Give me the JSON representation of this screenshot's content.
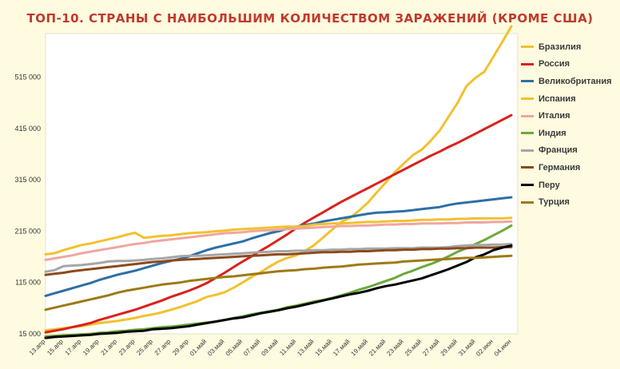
{
  "chart_data": {
    "type": "line",
    "title": "ТОП-10. СТРАНЫ С НАИБОЛЬШИМ КОЛИЧЕСТВОМ ЗАРАЖЕНИЙ (КРОМЕ США)",
    "xlabel": "",
    "ylabel": "",
    "ylim": [
      15000,
      600000
    ],
    "yticks": [
      15000,
      115000,
      215000,
      315000,
      415000,
      515000
    ],
    "ytick_labels": [
      "15 000",
      "115 000",
      "215 000",
      "315 000",
      "415 000",
      "515 000"
    ],
    "x_tick_labels": [
      "13.апр",
      "15.апр",
      "17.апр",
      "19.апр",
      "21.апр",
      "23.апр",
      "25.апр",
      "27.апр",
      "29.апр",
      "01.май",
      "03.май",
      "05.май",
      "07.май",
      "09.май",
      "11.май",
      "13.май",
      "15.май",
      "17.май",
      "19.май",
      "21.май",
      "23.май",
      "25.май",
      "27.май",
      "29.май",
      "31.май",
      "02.июн",
      "04.июн"
    ],
    "x": [
      "13.апр",
      "14.апр",
      "15.апр",
      "16.апр",
      "17.апр",
      "18.апр",
      "19.апр",
      "20.апр",
      "21.апр",
      "22.апр",
      "23.апр",
      "24.апр",
      "25.апр",
      "26.апр",
      "27.апр",
      "28.апр",
      "29.апр",
      "30.апр",
      "01.май",
      "02.май",
      "03.май",
      "04.май",
      "05.май",
      "06.май",
      "07.май",
      "08.май",
      "09.май",
      "10.май",
      "11.май",
      "12.май",
      "13.май",
      "14.май",
      "15.май",
      "16.май",
      "17.май",
      "18.май",
      "19.май",
      "20.май",
      "21.май",
      "22.май",
      "23.май",
      "24.май",
      "25.май",
      "26.май",
      "27.май",
      "28.май",
      "29.май",
      "30.май",
      "31.май",
      "01.июн",
      "02.июн",
      "03.июн",
      "04.июн"
    ],
    "grid": false,
    "legend_position": "right",
    "series": [
      {
        "name": "Бразилия",
        "color": "#f2c12e",
        "width": 3,
        "values": [
          22000,
          24000,
          26000,
          28000,
          30000,
          33000,
          36000,
          38000,
          40000,
          43000,
          46000,
          50000,
          53000,
          57000,
          62000,
          67000,
          73000,
          79000,
          87000,
          91000,
          96000,
          105000,
          115000,
          126000,
          135000,
          146000,
          156000,
          163000,
          168000,
          177000,
          188000,
          203000,
          218000,
          233000,
          241000,
          255000,
          271000,
          291000,
          310000,
          330000,
          347000,
          363000,
          374000,
          391000,
          411000,
          438000,
          465000,
          498000,
          514000,
          526000,
          555000,
          584000,
          614000
        ]
      },
      {
        "name": "Россия",
        "color": "#d9221c",
        "width": 3,
        "values": [
          18000,
          21000,
          24000,
          28000,
          32000,
          36000,
          42000,
          47000,
          52000,
          57000,
          62000,
          68000,
          74000,
          80000,
          87000,
          93000,
          99000,
          106000,
          114000,
          124000,
          134000,
          145000,
          156000,
          166000,
          177000,
          187000,
          198000,
          209000,
          221000,
          232000,
          242000,
          252000,
          262000,
          272000,
          281000,
          290000,
          299000,
          308000,
          317000,
          326000,
          335000,
          344000,
          353000,
          362000,
          370000,
          379000,
          387000,
          396000,
          405000,
          414000,
          423000,
          432000,
          441000
        ]
      },
      {
        "name": "Великобритания",
        "color": "#2e6fa6",
        "width": 3,
        "values": [
          89000,
          94000,
          99000,
          104000,
          109000,
          114000,
          120000,
          125000,
          130000,
          134000,
          138000,
          143000,
          148000,
          153000,
          157000,
          161000,
          166000,
          172000,
          178000,
          183000,
          187000,
          191000,
          195000,
          201000,
          206000,
          211000,
          215000,
          220000,
          224000,
          227000,
          230000,
          234000,
          237000,
          240000,
          243000,
          246000,
          249000,
          251000,
          252000,
          253000,
          254000,
          256000,
          258000,
          260000,
          262000,
          266000,
          269000,
          271000,
          273000,
          275000,
          277000,
          279000,
          281000
        ]
      },
      {
        "name": "Испания",
        "color": "#f2c12e",
        "width": 3,
        "values": [
          170000,
          172000,
          178000,
          183000,
          188000,
          191000,
          195000,
          199000,
          203000,
          208000,
          212000,
          202000,
          204000,
          206000,
          207000,
          209000,
          211000,
          212000,
          213000,
          215000,
          216000,
          218000,
          219000,
          220000,
          221000,
          222000,
          223000,
          224000,
          224000,
          225000,
          228000,
          229000,
          230000,
          230000,
          231000,
          232000,
          233000,
          233000,
          234000,
          235000,
          235000,
          236000,
          237000,
          237000,
          238000,
          238000,
          239000,
          239000,
          240000,
          240000,
          240000,
          240000,
          241000
        ]
      },
      {
        "name": "Италия",
        "color": "#f0a6a0",
        "width": 3,
        "values": [
          159000,
          162000,
          165000,
          168000,
          172000,
          175000,
          178000,
          181000,
          184000,
          187000,
          190000,
          192000,
          195000,
          197000,
          199000,
          201000,
          203000,
          205000,
          207000,
          209000,
          211000,
          212000,
          213000,
          215000,
          216000,
          217000,
          218000,
          219000,
          220000,
          221000,
          222000,
          223000,
          224000,
          225000,
          225000,
          226000,
          226000,
          227000,
          228000,
          228000,
          229000,
          229000,
          230000,
          230000,
          230000,
          231000,
          231000,
          232000,
          232000,
          232000,
          233000,
          233000,
          234000
        ]
      },
      {
        "name": "Индия",
        "color": "#6aaa3a",
        "width": 3,
        "values": [
          10000,
          11000,
          12000,
          13000,
          14000,
          15000,
          17000,
          18000,
          20000,
          21000,
          23000,
          24000,
          26000,
          28000,
          29000,
          31000,
          33000,
          35000,
          37000,
          39000,
          42000,
          46000,
          49000,
          53000,
          56000,
          59000,
          62000,
          67000,
          70000,
          74000,
          78000,
          81000,
          85000,
          90000,
          95000,
          101000,
          106000,
          112000,
          118000,
          124000,
          132000,
          138000,
          145000,
          151000,
          158000,
          166000,
          175000,
          182000,
          190000,
          198000,
          207000,
          216000,
          226000
        ]
      },
      {
        "name": "Франция",
        "color": "#a6a6a6",
        "width": 3,
        "values": [
          136000,
          139000,
          147000,
          148000,
          149000,
          151000,
          153000,
          156000,
          157000,
          157000,
          158000,
          159000,
          161000,
          162000,
          164000,
          166000,
          167000,
          167000,
          168000,
          169000,
          170000,
          171000,
          172000,
          173000,
          174000,
          175000,
          176000,
          176000,
          177000,
          177000,
          178000,
          178000,
          179000,
          179000,
          180000,
          180000,
          181000,
          181000,
          181000,
          182000,
          182000,
          182000,
          183000,
          183000,
          183000,
          184000,
          186000,
          187000,
          188000,
          188000,
          189000,
          189000,
          190000
        ]
      },
      {
        "name": "Германия",
        "color": "#8b4a1c",
        "width": 3,
        "values": [
          130000,
          132000,
          134000,
          137000,
          139000,
          141000,
          143000,
          145000,
          147000,
          149000,
          151000,
          153000,
          155000,
          156000,
          158000,
          159000,
          160000,
          161000,
          162000,
          163000,
          164000,
          165000,
          166000,
          167000,
          168000,
          169000,
          170000,
          170000,
          171000,
          172000,
          173000,
          174000,
          174000,
          175000,
          175000,
          176000,
          176000,
          177000,
          178000,
          178000,
          179000,
          179000,
          180000,
          180000,
          181000,
          181000,
          182000,
          182000,
          183000,
          183000,
          183000,
          184000,
          184000
        ]
      },
      {
        "name": "Перу",
        "color": "#000000",
        "width": 3,
        "values": [
          7000,
          9000,
          10000,
          11000,
          12000,
          13000,
          15000,
          16000,
          17000,
          19000,
          20000,
          21000,
          24000,
          25000,
          26000,
          28000,
          30000,
          33000,
          36000,
          39000,
          42000,
          45000,
          47000,
          51000,
          55000,
          58000,
          61000,
          65000,
          68000,
          72000,
          76000,
          80000,
          84000,
          88000,
          92000,
          95000,
          99000,
          104000,
          108000,
          111000,
          115000,
          119000,
          123000,
          129000,
          135000,
          141000,
          148000,
          155000,
          164000,
          170000,
          178000,
          183000,
          187000
        ]
      },
      {
        "name": "Турция",
        "color": "#9e7a12",
        "width": 3,
        "values": [
          62000,
          66000,
          70000,
          74000,
          78000,
          82000,
          86000,
          90000,
          95000,
          99000,
          102000,
          105000,
          108000,
          111000,
          113000,
          115000,
          118000,
          120000,
          122000,
          124000,
          126000,
          127000,
          129000,
          131000,
          133000,
          135000,
          137000,
          138000,
          139000,
          141000,
          142000,
          144000,
          145000,
          146000,
          148000,
          150000,
          151000,
          152000,
          153000,
          154000,
          156000,
          157000,
          158000,
          159000,
          160000,
          161000,
          162000,
          163000,
          163000,
          164000,
          165000,
          166000,
          167000
        ]
      }
    ]
  }
}
